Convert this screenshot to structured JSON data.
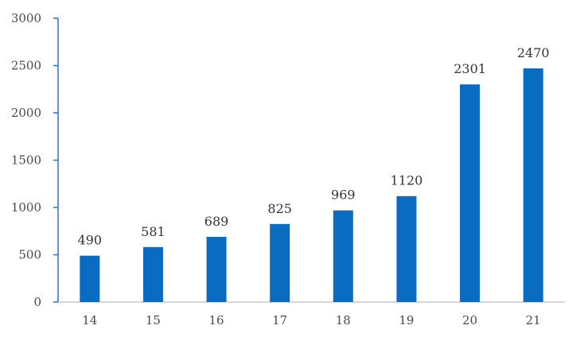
{
  "chart_data": {
    "type": "bar",
    "categories": [
      "14",
      "15",
      "16",
      "17",
      "18",
      "19",
      "20",
      "21"
    ],
    "values": [
      490,
      581,
      689,
      825,
      969,
      1120,
      2301,
      2470
    ],
    "data_labels": [
      "490",
      "581",
      "689",
      "825",
      "969",
      "1120",
      "2301",
      "2470"
    ],
    "title": "",
    "xlabel": "",
    "ylabel": "",
    "ylim": [
      0,
      3000
    ],
    "yticks": [
      0,
      500,
      1000,
      1500,
      2000,
      2500,
      3000
    ],
    "ytick_labels": [
      "0",
      "500",
      "1000",
      "1500",
      "2000",
      "2500",
      "3000"
    ],
    "grid": false,
    "legend": "none",
    "colors": {
      "bar": "#0a6cc0",
      "axis": "#2f6fd1"
    }
  }
}
